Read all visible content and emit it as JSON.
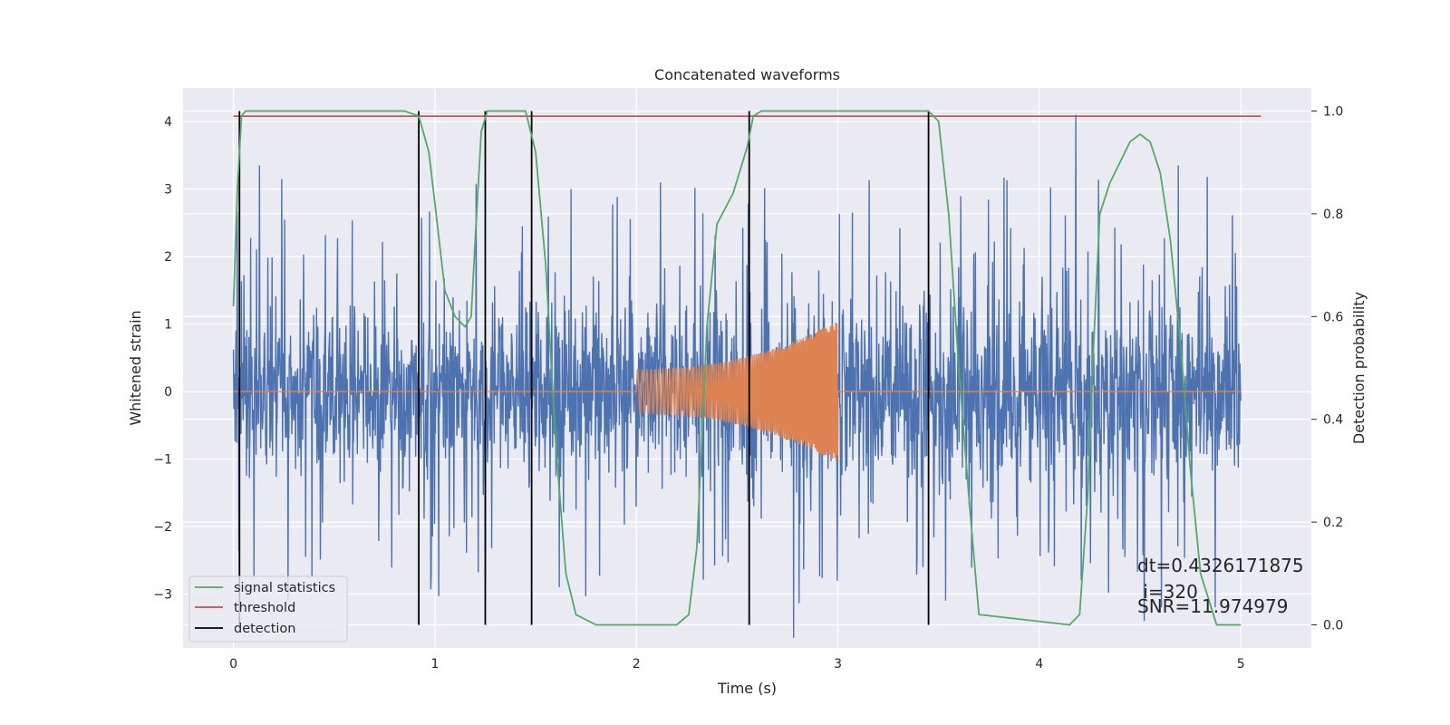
{
  "chart_data": {
    "type": "line",
    "title": "Concatenated waveforms",
    "xlabel": "Time (s)",
    "ylabel": "Whitened strain",
    "y2label": "Detection probability",
    "xlim": [
      -0.25,
      5.35
    ],
    "ylim": [
      -3.8,
      4.5
    ],
    "y2lim": [
      -0.045,
      1.045
    ],
    "x_ticks": [
      0,
      1,
      2,
      3,
      4,
      5
    ],
    "y_ticks": [
      -3,
      -2,
      -1,
      0,
      1,
      2,
      3,
      4
    ],
    "y2_ticks": [
      0.0,
      0.2,
      0.4,
      0.6,
      0.8,
      1.0
    ],
    "grid": true,
    "legend_position": "lower-left",
    "series": [
      {
        "name": "",
        "color": "#4c72b0",
        "axis": "left",
        "kind": "noise",
        "x_range": [
          0,
          5
        ],
        "peak_values": [
          3.35,
          3.15,
          4.1,
          3.35,
          -3.65,
          -3.4
        ]
      },
      {
        "name": "",
        "color": "#dd8452",
        "axis": "left",
        "kind": "chirp",
        "x_range": [
          2.0,
          3.0
        ],
        "amplitude_start": 0.33,
        "amplitude_end": 1.05
      },
      {
        "name": "signal statistics",
        "color": "#55a868",
        "axis": "right",
        "x": [
          0,
          0.02,
          0.04,
          0.06,
          0.1,
          0.85,
          0.92,
          0.97,
          1.0,
          1.05,
          1.1,
          1.15,
          1.18,
          1.2,
          1.23,
          1.26,
          1.3,
          1.45,
          1.5,
          1.55,
          1.6,
          1.65,
          1.7,
          1.8,
          2.2,
          2.26,
          2.3,
          2.35,
          2.4,
          2.48,
          2.55,
          2.58,
          2.62,
          3.45,
          3.5,
          3.55,
          3.6,
          3.65,
          3.7,
          4.15,
          4.2,
          4.24,
          4.27,
          4.3,
          4.35,
          4.4,
          4.45,
          4.5,
          4.55,
          4.6,
          4.65,
          4.7,
          4.75,
          4.8,
          4.88,
          5.0
        ],
        "y": [
          0.62,
          0.85,
          0.99,
          1.0,
          1.0,
          1.0,
          0.99,
          0.92,
          0.82,
          0.65,
          0.6,
          0.58,
          0.6,
          0.75,
          0.96,
          1.0,
          1.0,
          1.0,
          0.92,
          0.7,
          0.35,
          0.1,
          0.02,
          0.0,
          0.0,
          0.02,
          0.15,
          0.58,
          0.78,
          0.84,
          0.93,
          0.99,
          1.0,
          1.0,
          0.98,
          0.8,
          0.5,
          0.25,
          0.02,
          0.0,
          0.02,
          0.25,
          0.55,
          0.8,
          0.86,
          0.9,
          0.94,
          0.955,
          0.94,
          0.88,
          0.75,
          0.55,
          0.3,
          0.1,
          0.0,
          0.0
        ]
      },
      {
        "name": "threshold",
        "color": "#c44e52",
        "axis": "right",
        "x": [
          0,
          5.1
        ],
        "y": [
          0.99,
          0.99
        ]
      },
      {
        "name": "detection",
        "color": "#000000",
        "axis": "right",
        "kind": "vlines",
        "x": [
          0.03,
          0.92,
          1.25,
          1.48,
          2.56,
          3.45
        ],
        "y_range": [
          0.0,
          1.0
        ]
      }
    ],
    "annotations": [
      "dt=0.4326171875",
      " i=320",
      "SNR=11.974979"
    ]
  }
}
